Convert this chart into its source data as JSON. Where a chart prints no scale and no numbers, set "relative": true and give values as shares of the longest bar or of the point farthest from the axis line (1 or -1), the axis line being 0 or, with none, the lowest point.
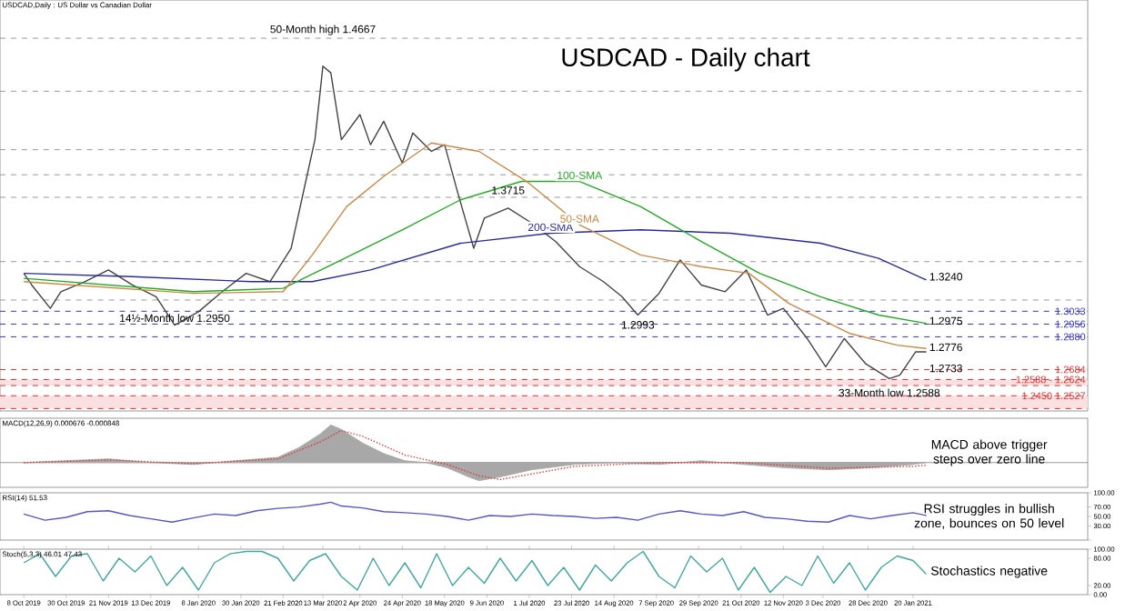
{
  "chart_data": [
    {
      "type": "line",
      "title": "USDCAD - Daily chart",
      "subtitle": "USDCAD,Daily : US Dollar vs Canadian Dollar",
      "xlim": [
        "2019-09-25",
        "2021-04-22"
      ],
      "ylim": [
        1.2436,
        1.4896
      ],
      "tick_labels": false,
      "series": [
        {
          "color": "#444444",
          "x": [
            "2019-10-08",
            "2019-10-11",
            "2019-10-22",
            "2019-10-28",
            "2019-11-08",
            "2019-11-21",
            "2019-12-04",
            "2019-12-17",
            "2019-12-26",
            "2020-01-08",
            "2020-01-21",
            "2020-02-03",
            "2020-02-14",
            "2020-02-26",
            "2020-03-03",
            "2020-03-10",
            "2020-03-12",
            "2020-03-13",
            "2020-03-18",
            "2020-03-24",
            "2020-04-02",
            "2020-04-08",
            "2020-04-15",
            "2020-04-24",
            "2020-04-30",
            "2020-05-11",
            "2020-05-18",
            "2020-05-25",
            "2020-06-02",
            "2020-06-08",
            "2020-06-19",
            "2020-07-02",
            "2020-07-15",
            "2020-07-28",
            "2020-08-10",
            "2020-08-19",
            "2020-08-27",
            "2020-09-08",
            "2020-09-18",
            "2020-09-30",
            "2020-10-13",
            "2020-10-23",
            "2020-11-04",
            "2020-11-12",
            "2020-11-25",
            "2020-12-04",
            "2020-12-15",
            "2020-12-25",
            "2021-01-07",
            "2021-01-13",
            "2021-01-21",
            "2021-01-27"
          ],
          "values": [
            1.326,
            1.319,
            1.305,
            1.315,
            1.321,
            1.328,
            1.319,
            1.312,
            1.295,
            1.303,
            1.315,
            1.326,
            1.321,
            1.341,
            1.37,
            1.406,
            1.435,
            1.45,
            1.446,
            1.406,
            1.421,
            1.403,
            1.417,
            1.392,
            1.41,
            1.399,
            1.403,
            1.374,
            1.341,
            1.359,
            1.365,
            1.356,
            1.345,
            1.33,
            1.321,
            1.312,
            1.301,
            1.314,
            1.334,
            1.319,
            1.315,
            1.328,
            1.301,
            1.305,
            1.287,
            1.27,
            1.287,
            1.272,
            1.263,
            1.265,
            1.279,
            1.279
          ]
        },
        {
          "name": "200-SMA",
          "color": "#2a2aa0",
          "x": [
            "2019-10-08",
            "2019-12-04",
            "2020-02-05",
            "2020-03-09",
            "2020-04-08",
            "2020-05-26",
            "2020-07-13",
            "2020-08-28",
            "2020-10-15",
            "2020-12-02",
            "2021-01-01",
            "2021-01-27"
          ],
          "values": [
            1.326,
            1.324,
            1.321,
            1.321,
            1.328,
            1.344,
            1.35,
            1.352,
            1.35,
            1.344,
            1.335,
            1.322
          ]
        },
        {
          "name": "100-SMA",
          "color": "#22aa22",
          "x": [
            "2019-10-08",
            "2020-01-06",
            "2020-02-21",
            "2020-03-24",
            "2020-04-24",
            "2020-05-26",
            "2020-06-26",
            "2020-07-28",
            "2020-08-28",
            "2020-09-30",
            "2020-10-30",
            "2020-12-02",
            "2021-01-01",
            "2021-01-27"
          ],
          "values": [
            1.323,
            1.315,
            1.317,
            1.334,
            1.352,
            1.37,
            1.381,
            1.381,
            1.366,
            1.345,
            1.326,
            1.312,
            1.301,
            1.296
          ]
        },
        {
          "name": "50-SMA",
          "color": "#cc8844",
          "x": [
            "2019-10-08",
            "2020-01-06",
            "2020-02-21",
            "2020-03-09",
            "2020-03-26",
            "2020-04-15",
            "2020-05-11",
            "2020-06-04",
            "2020-06-30",
            "2020-07-28",
            "2020-08-10",
            "2020-08-28",
            "2020-09-30",
            "2020-10-26",
            "2020-11-16",
            "2020-12-17",
            "2021-01-12",
            "2021-01-27"
          ],
          "values": [
            1.321,
            1.314,
            1.315,
            1.337,
            1.366,
            1.384,
            1.404,
            1.399,
            1.381,
            1.355,
            1.348,
            1.337,
            1.33,
            1.326,
            1.308,
            1.29,
            1.283,
            1.281
          ]
        }
      ],
      "ref_lines": [
        {
          "axis": "y",
          "value": 1.4667,
          "color": "#999999",
          "line_style": "dashed"
        },
        {
          "axis": "y",
          "value": 1.435,
          "color": "#999999",
          "line_style": "dashed"
        },
        {
          "axis": "y",
          "value": 1.4,
          "color": "#999999",
          "line_style": "dashed"
        },
        {
          "axis": "y",
          "value": 1.385,
          "color": "#999999",
          "line_style": "dashed"
        },
        {
          "axis": "y",
          "value": 1.3715,
          "color": "#999999",
          "line_style": "dashed"
        },
        {
          "axis": "y",
          "value": 1.333,
          "color": "#999999",
          "line_style": "dashed"
        },
        {
          "axis": "y",
          "value": 1.31,
          "color": "#999999",
          "line_style": "dashed"
        },
        {
          "axis": "y",
          "value": 1.3033,
          "label": "1.3033",
          "color": "#3333cc",
          "line_style": "dashed"
        },
        {
          "axis": "y",
          "value": 1.2956,
          "label": "1.2956",
          "color": "#3333cc",
          "line_style": "dashed"
        },
        {
          "axis": "y",
          "value": 1.288,
          "label": "1.2880",
          "color": "#3333cc",
          "line_style": "dashed"
        },
        {
          "axis": "y",
          "value": 1.2684,
          "label": "1.2684",
          "color": "#e03030",
          "line_style": "dashed"
        },
        {
          "axis": "y",
          "value": 1.2624,
          "color": "#e03030",
          "line_style": "dashed"
        },
        {
          "axis": "y",
          "value": 1.2588,
          "color": "#e03030",
          "line_style": "dashed"
        },
        {
          "axis": "y",
          "value": 1.2527,
          "color": "#e03030",
          "line_style": "dashed"
        },
        {
          "axis": "y",
          "value": 1.245,
          "color": "#e03030",
          "line_style": "dashed"
        }
      ],
      "bands": [
        {
          "axis": "y",
          "from": 1.2588,
          "to": 1.2624,
          "label": "1.2588 - 1.2624",
          "color": "#fae0e0"
        },
        {
          "axis": "y",
          "from": 1.245,
          "to": 1.2527,
          "label": "1.2450  1.2527",
          "color": "#fae0e0"
        }
      ],
      "annotations": [
        {
          "text": "50-Month high 1.4667",
          "x": "2020-03-13",
          "y": 1.4667
        },
        {
          "text": "1.3715",
          "x": "2020-06-19",
          "y": 1.3715
        },
        {
          "text": "1.2993",
          "x": "2020-08-27",
          "y": 1.2993
        },
        {
          "text": "14½-Month low 1.2950",
          "x": "2019-12-26",
          "y": 1.295
        },
        {
          "text": "33-Month low 1.2588",
          "x": "2021-01-07",
          "y": 1.2588
        },
        {
          "text": "1.3240",
          "x": "2021-01-27",
          "y": 1.324
        },
        {
          "text": "1.2975",
          "x": "2021-01-27",
          "y": 1.2975
        },
        {
          "text": "1.2776",
          "x": "2021-01-27",
          "y": 1.2776
        },
        {
          "text": "1.2733",
          "x": "2021-01-27",
          "y": 1.2733
        }
      ]
    },
    {
      "type": "line",
      "relative": true,
      "subtitle": "MACD(12,26,9) 0.000676 -0.000848",
      "xlim": [
        "2019-09-25",
        "2021-04-22"
      ],
      "tick_labels": false,
      "series": [
        {
          "type": "area",
          "color": "#a8a8a8",
          "x": [
            "2019-10-08",
            "2019-10-30",
            "2019-11-21",
            "2019-12-13",
            "2020-01-06",
            "2020-01-28",
            "2020-02-19",
            "2020-03-02",
            "2020-03-12",
            "2020-03-18",
            "2020-03-24",
            "2020-04-03",
            "2020-04-15",
            "2020-04-27",
            "2020-05-07",
            "2020-05-19",
            "2020-05-29",
            "2020-06-04",
            "2020-06-16",
            "2020-07-02",
            "2020-07-24",
            "2020-08-17",
            "2020-09-08",
            "2020-09-30",
            "2020-10-22",
            "2020-11-13",
            "2020-12-07",
            "2020-12-29",
            "2021-01-20",
            "2021-01-27"
          ],
          "values": [
            0,
            0.05,
            0.1,
            0,
            -0.05,
            0.05,
            0.14,
            0.4,
            0.76,
            1,
            0.88,
            0.52,
            0.24,
            0.05,
            0,
            -0.14,
            -0.38,
            -0.48,
            -0.38,
            -0.19,
            -0.05,
            0,
            -0.05,
            0.05,
            -0.05,
            -0.14,
            -0.19,
            -0.14,
            -0.05,
            0
          ]
        },
        {
          "color": "#e03030",
          "line_style": "dotted",
          "x": [
            "2019-10-08",
            "2019-11-21",
            "2020-01-06",
            "2020-02-19",
            "2020-03-12",
            "2020-03-24",
            "2020-04-03",
            "2020-04-27",
            "2020-05-19",
            "2020-06-04",
            "2020-06-16",
            "2020-07-02",
            "2020-07-24",
            "2020-09-08",
            "2020-10-22",
            "2020-12-07",
            "2021-01-20",
            "2021-01-27"
          ],
          "values": [
            0,
            0.07,
            -0.03,
            0.1,
            0.55,
            0.85,
            0.7,
            0.2,
            -0.05,
            -0.35,
            -0.45,
            -0.3,
            -0.1,
            0,
            0,
            -0.15,
            -0.1,
            -0.07
          ]
        }
      ],
      "annotations": [
        "MACD above trigger steps over zero line"
      ]
    },
    {
      "type": "line",
      "subtitle": "RSI(14) 51.53",
      "xlim": [
        "2019-09-25",
        "2021-04-22"
      ],
      "ylim": [
        0,
        100
      ],
      "tick_labels": "y",
      "yticks": [
        {
          "value": 0,
          "label": null
        },
        {
          "value": 30,
          "label": "30.00"
        },
        {
          "value": 50,
          "label": "50.00"
        },
        {
          "value": 70,
          "label": "70.00"
        },
        {
          "value": 100,
          "label": "100.00"
        }
      ],
      "series": [
        {
          "color": "#5555cc",
          "x": [
            "2019-10-08",
            "2019-10-18",
            "2019-10-30",
            "2019-11-11",
            "2019-11-21",
            "2019-12-03",
            "2019-12-13",
            "2019-12-25",
            "2020-01-06",
            "2020-01-16",
            "2020-01-28",
            "2020-02-07",
            "2020-02-19",
            "2020-03-02",
            "2020-03-12",
            "2020-03-18",
            "2020-03-24",
            "2020-04-03",
            "2020-04-15",
            "2020-04-27",
            "2020-05-07",
            "2020-05-19",
            "2020-05-29",
            "2020-06-10",
            "2020-06-22",
            "2020-07-02",
            "2020-07-14",
            "2020-07-24",
            "2020-08-05",
            "2020-08-17",
            "2020-08-27",
            "2020-09-08",
            "2020-09-18",
            "2020-09-30",
            "2020-10-12",
            "2020-10-22",
            "2020-11-03",
            "2020-11-13",
            "2020-11-25",
            "2020-12-07",
            "2020-12-17",
            "2020-12-29",
            "2021-01-08",
            "2021-01-20",
            "2021-01-27"
          ],
          "values": [
            55,
            42,
            48,
            60,
            62,
            52,
            45,
            38,
            47,
            55,
            52,
            62,
            67,
            70,
            76,
            80,
            72,
            68,
            60,
            58,
            55,
            50,
            42,
            52,
            50,
            55,
            52,
            50,
            46,
            48,
            42,
            55,
            62,
            55,
            52,
            60,
            48,
            45,
            40,
            38,
            52,
            45,
            52,
            58,
            52
          ]
        }
      ],
      "annotations": [
        "RSI struggles in bullish zone, bounces on 50 level"
      ]
    },
    {
      "type": "line",
      "subtitle": "Stoch(5,3,3) 46.01 47.43",
      "xlim": [
        "2019-09-25",
        "2021-04-22"
      ],
      "ylim": [
        0,
        100
      ],
      "yticks": [
        {
          "value": 0,
          "label": "0.00"
        },
        {
          "value": 20,
          "label": "20.00"
        },
        {
          "value": 80,
          "label": "80.00"
        },
        {
          "value": 100,
          "label": "100.00"
        }
      ],
      "xticks": [
        {
          "value": "2019-10-08",
          "label": "8 Oct 2019"
        },
        {
          "value": "2019-10-30",
          "label": "30 Oct 2019"
        },
        {
          "value": "2019-11-21",
          "label": "21 Nov 2019"
        },
        {
          "value": "2019-12-13",
          "label": "13 Dec 2019"
        },
        {
          "value": "2020-01-08",
          "label": "8 Jan 2020"
        },
        {
          "value": "2020-01-30",
          "label": "30 Jan 2020"
        },
        {
          "value": "2020-02-21",
          "label": "21 Feb 2020"
        },
        {
          "value": "2020-03-13",
          "label": "13 Mar 2020"
        },
        {
          "value": "2020-04-02",
          "label": "2 Apr 2020"
        },
        {
          "value": "2020-04-24",
          "label": "24 Apr 2020"
        },
        {
          "value": "2020-05-18",
          "label": "18 May 2020"
        },
        {
          "value": "2020-06-09",
          "label": "9 Jun 2020"
        },
        {
          "value": "2020-07-01",
          "label": "1 Jul 2020"
        },
        {
          "value": "2020-07-23",
          "label": "23 Jul 2020"
        },
        {
          "value": "2020-08-14",
          "label": "14 Aug 2020"
        },
        {
          "value": "2020-09-07",
          "label": "7 Sep 2020"
        },
        {
          "value": "2020-09-29",
          "label": "29 Sep 2020"
        },
        {
          "value": "2020-10-21",
          "label": "21 Oct 2020"
        },
        {
          "value": "2020-11-12",
          "label": "12 Nov 2020"
        },
        {
          "value": "2020-12-03",
          "label": "3 Dec 2020"
        },
        {
          "value": "2020-12-28",
          "label": "28 Dec 2020"
        },
        {
          "value": "2021-01-20",
          "label": "20 Jan 2021"
        }
      ],
      "series": [
        {
          "color": "#40a8a0",
          "x": [
            "2019-10-08",
            "2019-10-16",
            "2019-10-24",
            "2019-11-01",
            "2019-11-11",
            "2019-11-19",
            "2019-11-27",
            "2019-12-05",
            "2019-12-13",
            "2019-12-23",
            "2019-12-31",
            "2020-01-08",
            "2020-01-16",
            "2020-01-24",
            "2020-02-03",
            "2020-02-11",
            "2020-02-19",
            "2020-02-27",
            "2020-03-06",
            "2020-03-16",
            "2020-03-24",
            "2020-04-01",
            "2020-04-09",
            "2020-04-17",
            "2020-04-27",
            "2020-05-05",
            "2020-05-13",
            "2020-05-21",
            "2020-05-29",
            "2020-06-08",
            "2020-06-16",
            "2020-06-24",
            "2020-07-02",
            "2020-07-10",
            "2020-07-20",
            "2020-07-28",
            "2020-08-05",
            "2020-08-13",
            "2020-08-21",
            "2020-08-31",
            "2020-09-08",
            "2020-09-16",
            "2020-09-24",
            "2020-10-02",
            "2020-10-12",
            "2020-10-20",
            "2020-10-28",
            "2020-11-05",
            "2020-11-13",
            "2020-11-23",
            "2020-12-01",
            "2020-12-09",
            "2020-12-17",
            "2020-12-25",
            "2021-01-04",
            "2021-01-12",
            "2021-01-20",
            "2021-01-27"
          ],
          "values": [
            70,
            90,
            40,
            85,
            90,
            30,
            80,
            50,
            85,
            20,
            60,
            10,
            70,
            90,
            95,
            95,
            80,
            30,
            75,
            90,
            40,
            10,
            80,
            20,
            70,
            15,
            90,
            20,
            60,
            25,
            80,
            30,
            75,
            20,
            60,
            10,
            65,
            30,
            70,
            95,
            40,
            15,
            85,
            50,
            80,
            10,
            60,
            5,
            40,
            20,
            85,
            25,
            70,
            10,
            60,
            85,
            75,
            45
          ]
        }
      ],
      "annotations": [
        "Stochastics negative"
      ]
    }
  ]
}
